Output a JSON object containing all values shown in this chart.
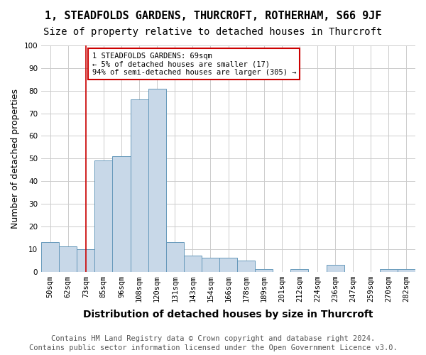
{
  "title": "1, STEADFOLDS GARDENS, THURCROFT, ROTHERHAM, S66 9JF",
  "subtitle": "Size of property relative to detached houses in Thurcroft",
  "xlabel": "Distribution of detached houses by size in Thurcroft",
  "ylabel": "Number of detached properties",
  "footnote1": "Contains HM Land Registry data © Crown copyright and database right 2024.",
  "footnote2": "Contains public sector information licensed under the Open Government Licence v3.0.",
  "bin_labels": [
    "50sqm",
    "62sqm",
    "73sqm",
    "85sqm",
    "96sqm",
    "108sqm",
    "120sqm",
    "131sqm",
    "143sqm",
    "154sqm",
    "166sqm",
    "178sqm",
    "189sqm",
    "201sqm",
    "212sqm",
    "224sqm",
    "236sqm",
    "247sqm",
    "259sqm",
    "270sqm",
    "282sqm"
  ],
  "values": [
    13,
    11,
    10,
    49,
    51,
    76,
    81,
    13,
    7,
    6,
    6,
    5,
    1,
    0,
    1,
    0,
    3,
    0,
    0,
    1,
    1
  ],
  "bar_color": "#c8d8e8",
  "bar_edge_color": "#6699bb",
  "marker_index": 2,
  "marker_color": "#cc0000",
  "annotation_line1": "1 STEADFOLDS GARDENS: 69sqm",
  "annotation_line2": "← 5% of detached houses are smaller (17)",
  "annotation_line3": "94% of semi-detached houses are larger (305) →",
  "annotation_box_color": "#ffffff",
  "annotation_border_color": "#cc0000",
  "ylim": [
    0,
    100
  ],
  "yticks": [
    0,
    10,
    20,
    30,
    40,
    50,
    60,
    70,
    80,
    90,
    100
  ],
  "bg_color": "#ffffff",
  "grid_color": "#cccccc",
  "title_fontsize": 11,
  "subtitle_fontsize": 10,
  "xlabel_fontsize": 10,
  "ylabel_fontsize": 9,
  "tick_fontsize": 7.5,
  "footnote_fontsize": 7.5
}
